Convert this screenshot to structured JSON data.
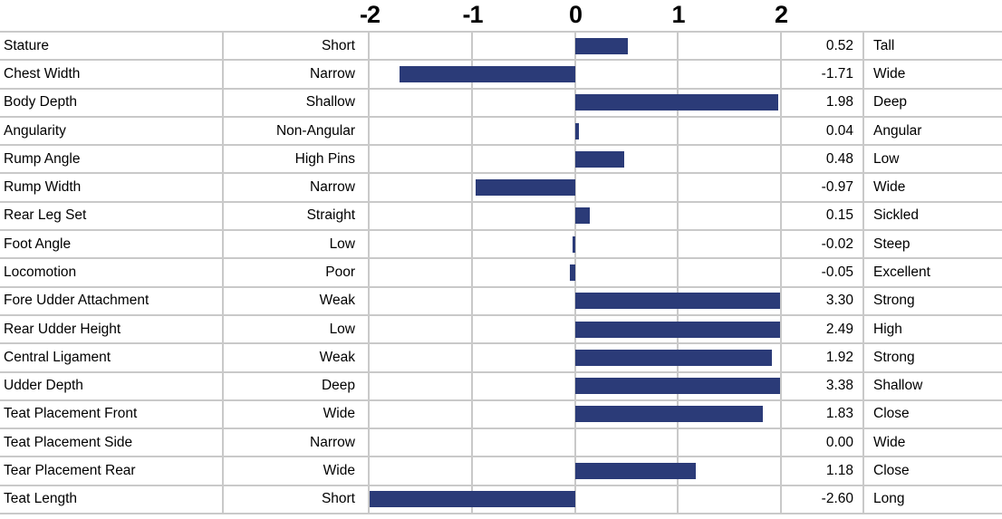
{
  "axis": {
    "ticks": [
      "-2",
      "-1",
      "0",
      "1",
      "2"
    ]
  },
  "colors": {
    "bar": "#2B3B78",
    "grid": "#C9C9C9",
    "text": "#000000",
    "background": "#FFFFFF"
  },
  "rows": [
    {
      "trait": "Stature",
      "low": "Short",
      "value": 0.52,
      "value_display": "0.52",
      "high": "Tall"
    },
    {
      "trait": "Chest Width",
      "low": "Narrow",
      "value": -1.71,
      "value_display": "-1.71",
      "high": "Wide"
    },
    {
      "trait": "Body Depth",
      "low": "Shallow",
      "value": 1.98,
      "value_display": "1.98",
      "high": "Deep"
    },
    {
      "trait": "Angularity",
      "low": "Non-Angular",
      "value": 0.04,
      "value_display": "0.04",
      "high": "Angular"
    },
    {
      "trait": "Rump Angle",
      "low": "High Pins",
      "value": 0.48,
      "value_display": "0.48",
      "high": "Low"
    },
    {
      "trait": "Rump Width",
      "low": "Narrow",
      "value": -0.97,
      "value_display": "-0.97",
      "high": "Wide"
    },
    {
      "trait": "Rear Leg Set",
      "low": "Straight",
      "value": 0.15,
      "value_display": "0.15",
      "high": "Sickled"
    },
    {
      "trait": "Foot Angle",
      "low": "Low",
      "value": -0.02,
      "value_display": "-0.02",
      "high": "Steep"
    },
    {
      "trait": "Locomotion",
      "low": "Poor",
      "value": -0.05,
      "value_display": "-0.05",
      "high": "Excellent"
    },
    {
      "trait": "Fore Udder Attachment",
      "low": "Weak",
      "value": 3.3,
      "value_display": "3.30",
      "high": "Strong"
    },
    {
      "trait": "Rear Udder Height",
      "low": "Low",
      "value": 2.49,
      "value_display": "2.49",
      "high": "High"
    },
    {
      "trait": "Central Ligament",
      "low": "Weak",
      "value": 1.92,
      "value_display": "1.92",
      "high": "Strong"
    },
    {
      "trait": "Udder Depth",
      "low": "Deep",
      "value": 3.38,
      "value_display": "3.38",
      "high": "Shallow"
    },
    {
      "trait": "Teat Placement Front",
      "low": "Wide",
      "value": 1.83,
      "value_display": "1.83",
      "high": "Close"
    },
    {
      "trait": "Teat Placement Side",
      "low": "Narrow",
      "value": 0.0,
      "value_display": "0.00",
      "high": "Wide"
    },
    {
      "trait": "Tear Placement Rear",
      "low": "Wide",
      "value": 1.18,
      "value_display": "1.18",
      "high": "Close"
    },
    {
      "trait": "Teat Length",
      "low": "Short",
      "value": -2.6,
      "value_display": "-2.60",
      "high": "Long"
    }
  ],
  "chart_data": {
    "type": "bar",
    "orientation": "horizontal",
    "title": "",
    "xlabel": "",
    "ylabel": "",
    "x_ticks": [
      -2,
      -1,
      0,
      1,
      2
    ],
    "xlim": [
      -2,
      2
    ],
    "bars_clipped_to_xlim": true,
    "grid": true,
    "bar_color": "#2B3B78",
    "categories": [
      "Stature",
      "Chest Width",
      "Body Depth",
      "Angularity",
      "Rump Angle",
      "Rump Width",
      "Rear Leg Set",
      "Foot Angle",
      "Locomotion",
      "Fore Udder Attachment",
      "Rear Udder Height",
      "Central Ligament",
      "Udder Depth",
      "Teat Placement Front",
      "Teat Placement Side",
      "Tear Placement Rear",
      "Teat Length"
    ],
    "values": [
      0.52,
      -1.71,
      1.98,
      0.04,
      0.48,
      -0.97,
      0.15,
      -0.02,
      -0.05,
      3.3,
      2.49,
      1.92,
      3.38,
      1.83,
      0.0,
      1.18,
      -2.6
    ],
    "low_end_labels": [
      "Short",
      "Narrow",
      "Shallow",
      "Non-Angular",
      "High Pins",
      "Narrow",
      "Straight",
      "Low",
      "Poor",
      "Weak",
      "Low",
      "Weak",
      "Deep",
      "Wide",
      "Narrow",
      "Wide",
      "Short"
    ],
    "high_end_labels": [
      "Tall",
      "Wide",
      "Deep",
      "Angular",
      "Low",
      "Wide",
      "Sickled",
      "Steep",
      "Excellent",
      "Strong",
      "High",
      "Strong",
      "Shallow",
      "Close",
      "Wide",
      "Close",
      "Long"
    ]
  }
}
